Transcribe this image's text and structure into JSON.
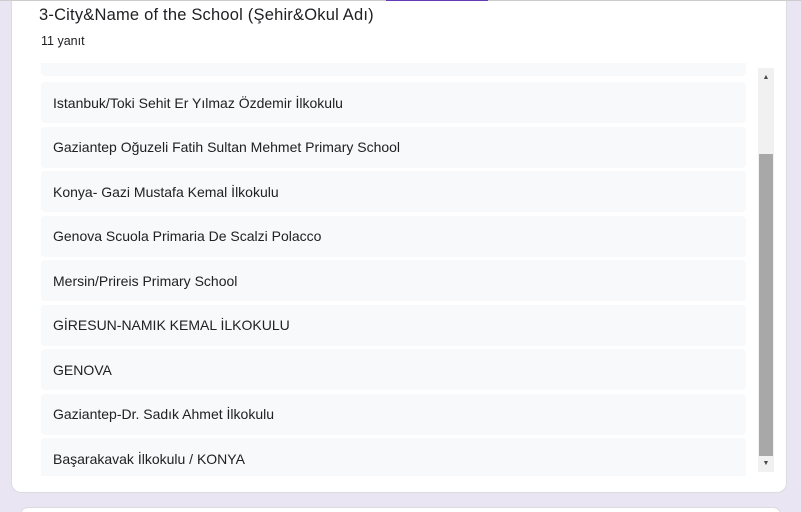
{
  "question": {
    "title": "3-City&Name of the School (Şehir&Okul Adı)",
    "response_count": "11 yanıt"
  },
  "answers": [
    "Istanbuk/Toki Sehit Er Yılmaz Özdemir İlkokulu",
    "Gaziantep Oğuzeli Fatih Sultan Mehmet Primary School",
    "Konya- Gazi Mustafa Kemal İlkokulu",
    "Genova Scuola Primaria De Scalzi Polacco",
    "Mersin/Prireis Primary School",
    "GİRESUN-NAMIK KEMAL İLKOKULU",
    "GENOVA",
    "Gaziantep-Dr. Sadık Ahmet İlkokulu",
    "Başarakavak İlkokulu / KONYA"
  ],
  "scrollbar": {
    "up_arrow": "▲",
    "down_arrow": "▼"
  },
  "colors": {
    "accent_purple": "#673ab7",
    "page_background": "#e9e5f2",
    "row_background": "#f8f9fa",
    "text": "#202124",
    "card_border": "#dadce0",
    "scrollbar_thumb": "#a8a8a8",
    "scrollbar_track": "#f1f1f1"
  }
}
